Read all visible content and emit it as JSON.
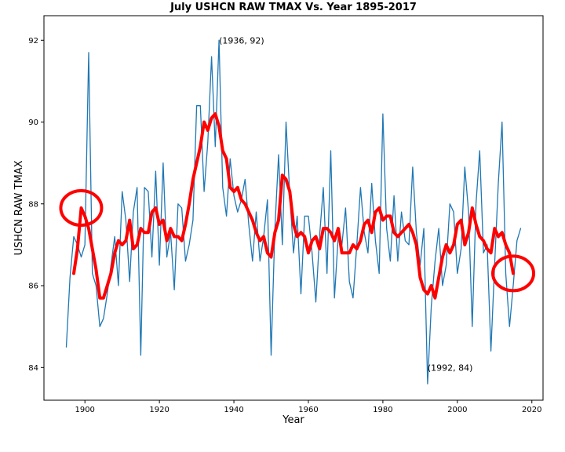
{
  "chart_data": {
    "type": "line",
    "title": "July USHCN RAW TMAX Vs. Year 1895-2017",
    "xlabel": "Year",
    "ylabel": "USHCN RAW TMAX",
    "xlim": [
      1889,
      2023
    ],
    "ylim": [
      83.2,
      92.6
    ],
    "x_ticks": [
      1900,
      1920,
      1940,
      1960,
      1980,
      2000,
      2020
    ],
    "y_ticks": [
      84,
      86,
      88,
      90,
      92
    ],
    "grid": false,
    "legend": "none",
    "series": [
      {
        "color": "#1f77b4",
        "x": [
          1895,
          1896,
          1897,
          1898,
          1899,
          1900,
          1901,
          1902,
          1903,
          1904,
          1905,
          1906,
          1907,
          1908,
          1909,
          1910,
          1911,
          1912,
          1913,
          1914,
          1915,
          1916,
          1917,
          1918,
          1919,
          1920,
          1921,
          1922,
          1923,
          1924,
          1925,
          1926,
          1927,
          1928,
          1929,
          1930,
          1931,
          1932,
          1933,
          1934,
          1935,
          1936,
          1937,
          1938,
          1939,
          1940,
          1941,
          1942,
          1943,
          1944,
          1945,
          1946,
          1947,
          1948,
          1949,
          1950,
          1951,
          1952,
          1953,
          1954,
          1955,
          1956,
          1957,
          1958,
          1959,
          1960,
          1961,
          1962,
          1963,
          1964,
          1965,
          1966,
          1967,
          1968,
          1969,
          1970,
          1971,
          1972,
          1973,
          1974,
          1975,
          1976,
          1977,
          1978,
          1979,
          1980,
          1981,
          1982,
          1983,
          1984,
          1985,
          1986,
          1987,
          1988,
          1989,
          1990,
          1991,
          1992,
          1993,
          1994,
          1995,
          1996,
          1997,
          1998,
          1999,
          2000,
          2001,
          2002,
          2003,
          2004,
          2005,
          2006,
          2007,
          2008,
          2009,
          2010,
          2011,
          2012,
          2013,
          2014,
          2015,
          2016,
          2017
        ],
        "y": [
          84.5,
          86.2,
          87.2,
          87.0,
          86.7,
          87.0,
          91.7,
          86.3,
          86.0,
          85.0,
          85.2,
          85.8,
          86.5,
          87.2,
          86.0,
          88.3,
          87.6,
          86.1,
          87.8,
          88.4,
          84.3,
          88.4,
          88.3,
          86.7,
          88.8,
          86.5,
          89.0,
          86.7,
          87.3,
          85.9,
          88.0,
          87.9,
          86.6,
          87.0,
          87.6,
          90.4,
          90.4,
          88.3,
          89.5,
          91.6,
          89.4,
          92.0,
          88.4,
          87.7,
          89.1,
          88.2,
          87.8,
          88.1,
          88.6,
          87.5,
          86.6,
          87.8,
          86.6,
          87.2,
          88.1,
          84.3,
          87.4,
          89.2,
          87.0,
          90.0,
          88.2,
          86.8,
          87.7,
          85.8,
          87.7,
          87.7,
          86.8,
          85.6,
          87.2,
          88.4,
          86.3,
          89.3,
          85.7,
          87.2,
          87.0,
          87.9,
          86.1,
          85.7,
          87.0,
          88.4,
          87.3,
          86.8,
          88.5,
          87.1,
          86.3,
          90.2,
          87.4,
          86.6,
          88.2,
          86.6,
          87.8,
          87.1,
          87.0,
          88.9,
          87.3,
          86.5,
          87.4,
          83.6,
          85.5,
          86.6,
          87.4,
          86.0,
          86.5,
          88.0,
          87.8,
          86.3,
          86.9,
          88.9,
          87.8,
          85.0,
          88.0,
          89.3,
          86.8,
          87.0,
          84.4,
          86.5,
          88.5,
          90.0,
          86.3,
          85.0,
          86.0,
          87.1,
          87.4
        ]
      },
      {
        "color": "#ff0000",
        "x": [
          1897,
          1898,
          1899,
          1900,
          1901,
          1902,
          1903,
          1904,
          1905,
          1906,
          1907,
          1908,
          1909,
          1910,
          1911,
          1912,
          1913,
          1914,
          1915,
          1916,
          1917,
          1918,
          1919,
          1920,
          1921,
          1922,
          1923,
          1924,
          1925,
          1926,
          1927,
          1928,
          1929,
          1930,
          1931,
          1932,
          1933,
          1934,
          1935,
          1936,
          1937,
          1938,
          1939,
          1940,
          1941,
          1942,
          1943,
          1944,
          1945,
          1946,
          1947,
          1948,
          1949,
          1950,
          1951,
          1952,
          1953,
          1954,
          1955,
          1956,
          1957,
          1958,
          1959,
          1960,
          1961,
          1962,
          1963,
          1964,
          1965,
          1966,
          1967,
          1968,
          1969,
          1970,
          1971,
          1972,
          1973,
          1974,
          1975,
          1976,
          1977,
          1978,
          1979,
          1980,
          1981,
          1982,
          1983,
          1984,
          1985,
          1986,
          1987,
          1988,
          1989,
          1990,
          1991,
          1992,
          1993,
          1994,
          1995,
          1996,
          1997,
          1998,
          1999,
          2000,
          2001,
          2002,
          2003,
          2004,
          2005,
          2006,
          2007,
          2008,
          2009,
          2010,
          2011,
          2012,
          2013,
          2014,
          2015
        ],
        "y": [
          86.3,
          86.9,
          87.9,
          87.7,
          87.4,
          86.9,
          86.4,
          85.7,
          85.7,
          86.0,
          86.3,
          86.8,
          87.1,
          87.0,
          87.1,
          87.6,
          86.9,
          87.0,
          87.4,
          87.3,
          87.3,
          87.8,
          87.9,
          87.5,
          87.6,
          87.1,
          87.4,
          87.2,
          87.2,
          87.1,
          87.5,
          88.0,
          88.6,
          89.0,
          89.4,
          90.0,
          89.8,
          90.1,
          90.2,
          89.9,
          89.3,
          89.1,
          88.4,
          88.3,
          88.4,
          88.1,
          88.0,
          87.8,
          87.6,
          87.3,
          87.1,
          87.2,
          86.8,
          86.7,
          87.3,
          87.6,
          88.7,
          88.6,
          88.3,
          87.5,
          87.2,
          87.3,
          87.2,
          86.8,
          87.1,
          87.2,
          86.9,
          87.4,
          87.4,
          87.3,
          87.1,
          87.4,
          86.8,
          86.8,
          86.8,
          87.0,
          86.9,
          87.1,
          87.5,
          87.6,
          87.3,
          87.8,
          87.9,
          87.6,
          87.7,
          87.7,
          87.3,
          87.2,
          87.3,
          87.4,
          87.5,
          87.3,
          87.0,
          86.2,
          85.9,
          85.8,
          86.0,
          85.7,
          86.2,
          86.7,
          87.0,
          86.8,
          87.0,
          87.5,
          87.6,
          87.0,
          87.3,
          87.9,
          87.5,
          87.2,
          87.1,
          86.9,
          86.8,
          87.4,
          87.2,
          87.3,
          87.0,
          86.8,
          86.3
        ]
      }
    ],
    "annotations": [
      {
        "text": "(1936, 92)",
        "x": 1936,
        "y": 92
      },
      {
        "text": "(1992, 84)",
        "x": 1992,
        "y": 84
      }
    ],
    "highlight_circles": [
      {
        "x": 1899,
        "y": 87.9
      },
      {
        "x": 2015,
        "y": 86.3
      }
    ]
  }
}
